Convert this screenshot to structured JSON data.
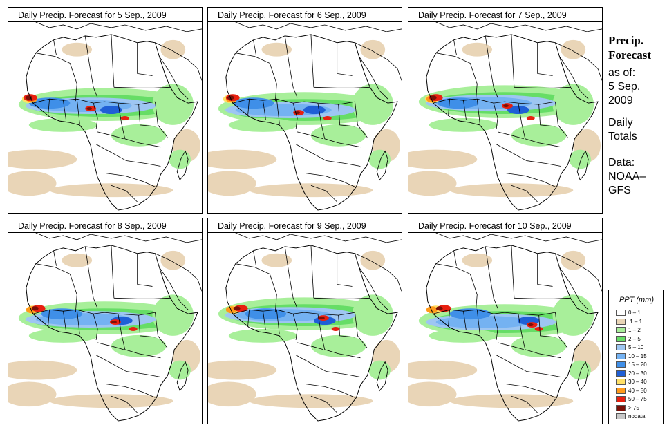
{
  "panels": [
    {
      "title": "Daily Precip. Forecast for  5 Sep., 2009"
    },
    {
      "title": "Daily Precip. Forecast for  6 Sep., 2009"
    },
    {
      "title": "Daily Precip. Forecast for  7 Sep., 2009"
    },
    {
      "title": "Daily Precip. Forecast for  8 Sep., 2009"
    },
    {
      "title": "Daily Precip. Forecast for  9 Sep., 2009"
    },
    {
      "title": "Daily Precip. Forecast for  10 Sep., 2009"
    }
  ],
  "sidebar": {
    "heading_line1": "Precip.",
    "heading_line2": "Forecast",
    "asof_label": "as of:",
    "date_line1": "5 Sep.",
    "date_line2": "2009",
    "totals_line1": "Daily",
    "totals_line2": "Totals",
    "data_line1": "Data:",
    "data_line2": "NOAA–",
    "data_line3": "GFS"
  },
  "legend": {
    "title": "PPT (mm)",
    "items": [
      {
        "label": "0 – 1",
        "color": "#ffffff"
      },
      {
        "label": ".1 – 1",
        "color": "#e9d5b7"
      },
      {
        "label": "1 – 2",
        "color": "#a8ef9a"
      },
      {
        "label": "2 – 5",
        "color": "#66dd66"
      },
      {
        "label": "5 – 10",
        "color": "#9ec6f2"
      },
      {
        "label": "10 – 15",
        "color": "#74b2f2"
      },
      {
        "label": "15 – 20",
        "color": "#3f8fe8"
      },
      {
        "label": "20 – 30",
        "color": "#1f5fd6"
      },
      {
        "label": "30 – 40",
        "color": "#ffe066"
      },
      {
        "label": "40 – 50",
        "color": "#ff9a1a"
      },
      {
        "label": "50 – 75",
        "color": "#e82010"
      },
      {
        "label": "> 75",
        "color": "#7a1008"
      },
      {
        "label": "nodata",
        "color": "#c8c8c8"
      }
    ]
  }
}
